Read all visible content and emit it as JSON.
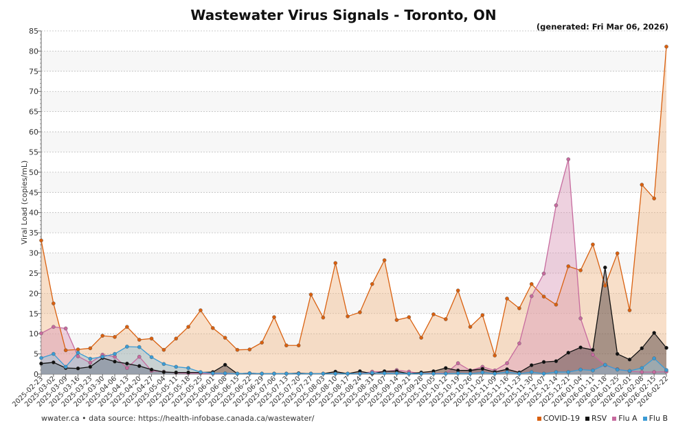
{
  "chart_data": {
    "type": "area",
    "title": "Wastewater Virus Signals - Toronto, ON",
    "subtitle": "(generated: Fri Mar 06, 2026)",
    "xlabel": "",
    "ylabel": "Viral Load (copies/mL)",
    "ylim": [
      0,
      85
    ],
    "yticks": [
      0,
      5,
      10,
      15,
      20,
      25,
      30,
      35,
      40,
      45,
      50,
      55,
      60,
      65,
      70,
      75,
      80,
      85
    ],
    "grid": true,
    "legend_position": "bottom-right",
    "categories": [
      "2025-02-23",
      "2025-03-02",
      "2025-03-09",
      "2025-03-16",
      "2025-03-23",
      "2025-03-30",
      "2025-04-06",
      "2025-04-13",
      "2025-04-20",
      "2025-04-27",
      "2025-05-04",
      "2025-05-11",
      "2025-05-18",
      "2025-05-25",
      "2025-06-01",
      "2025-06-08",
      "2025-06-15",
      "2025-06-22",
      "2025-06-29",
      "2025-07-06",
      "2025-07-13",
      "2025-07-20",
      "2025-07-27",
      "2025-08-03",
      "2025-08-10",
      "2025-08-17",
      "2025-08-24",
      "2025-08-31",
      "2025-09-07",
      "2025-09-14",
      "2025-09-21",
      "2025-09-28",
      "2025-10-05",
      "2025-10-12",
      "2025-10-19",
      "2025-10-26",
      "2025-11-02",
      "2025-11-09",
      "2025-11-16",
      "2025-11-23",
      "2025-11-30",
      "2025-12-07",
      "2025-12-14",
      "2025-12-21",
      "2026-01-04",
      "2026-01-11",
      "2026-01-18",
      "2026-01-25",
      "2026-02-01",
      "2026-02-08",
      "2026-02-15",
      "2026-02-22"
    ],
    "series": [
      {
        "name": "COVID-19",
        "color": "#d9600f",
        "fill": "#f0b887",
        "values": [
          33.1,
          17.5,
          5.9,
          6.1,
          6.4,
          9.5,
          9.2,
          11.7,
          8.5,
          8.8,
          6.0,
          8.8,
          11.7,
          15.8,
          11.4,
          9.0,
          6.0,
          6.1,
          7.8,
          14.1,
          7.1,
          7.1,
          19.7,
          14.0,
          27.5,
          14.3,
          15.3,
          22.3,
          28.2,
          13.4,
          14.1,
          9.0,
          14.8,
          13.6,
          20.7,
          11.7,
          14.6,
          4.6,
          18.7,
          16.3,
          22.3,
          19.2,
          17.2,
          26.7,
          25.7,
          32.1,
          21.9,
          29.9,
          15.8,
          46.9,
          43.5,
          81.1
        ]
      },
      {
        "name": "Flu A",
        "color": "#c66a9e",
        "fill": "#d99ab9",
        "values": [
          10.1,
          11.7,
          11.3,
          4.4,
          2.8,
          4.8,
          4.3,
          1.5,
          4.3,
          0.8,
          0.6,
          0.3,
          0.2,
          0.2,
          0.1,
          0.1,
          0.1,
          0.2,
          0.1,
          0.1,
          0.1,
          0.2,
          0.1,
          0.1,
          0.1,
          0.1,
          0.1,
          0.6,
          0.6,
          1.0,
          0.6,
          0.1,
          0.2,
          0.2,
          2.7,
          0.9,
          1.8,
          0.9,
          2.7,
          7.6,
          19.3,
          24.9,
          41.8,
          53.2,
          13.8,
          4.8,
          2.2,
          1.2,
          0.7,
          0.5,
          0.5,
          0.6
        ]
      },
      {
        "name": "RSV",
        "color": "#111111",
        "fill": "#4a3a3a",
        "values": [
          2.6,
          2.9,
          1.5,
          1.4,
          1.8,
          4.0,
          3.1,
          2.6,
          2.0,
          1.1,
          0.5,
          0.4,
          0.4,
          0.4,
          0.5,
          2.3,
          0.1,
          0.2,
          0.1,
          0.1,
          0.1,
          0.2,
          0.1,
          0.1,
          0.6,
          0.1,
          0.7,
          0.1,
          0.7,
          0.7,
          0.1,
          0.4,
          0.7,
          1.5,
          0.9,
          0.9,
          1.3,
          0.5,
          1.2,
          0.4,
          2.2,
          3.0,
          3.2,
          5.3,
          6.6,
          6.0,
          26.4,
          5.0,
          3.6,
          6.4,
          10.2,
          6.5
        ]
      },
      {
        "name": "Flu B",
        "color": "#3a9bd5",
        "fill": "#8ec3de",
        "values": [
          4.0,
          5.0,
          1.8,
          5.3,
          3.8,
          4.3,
          5.0,
          6.8,
          6.7,
          4.2,
          2.5,
          1.8,
          1.5,
          0.5,
          0.2,
          0.2,
          0.1,
          0.2,
          0.1,
          0.1,
          0.1,
          0.1,
          0.1,
          0.1,
          0.1,
          0.1,
          0.1,
          0.3,
          0.2,
          0.2,
          0.1,
          0.1,
          0.1,
          0.1,
          0.2,
          0.1,
          0.4,
          0.1,
          0.5,
          0.1,
          0.5,
          0.1,
          0.5,
          0.5,
          1.1,
          0.9,
          2.3,
          1.1,
          0.8,
          1.5,
          3.9,
          1.0
        ]
      }
    ]
  },
  "footer": "wwater.ca • data source: https://health-infobase.canada.ca/wastewater/"
}
